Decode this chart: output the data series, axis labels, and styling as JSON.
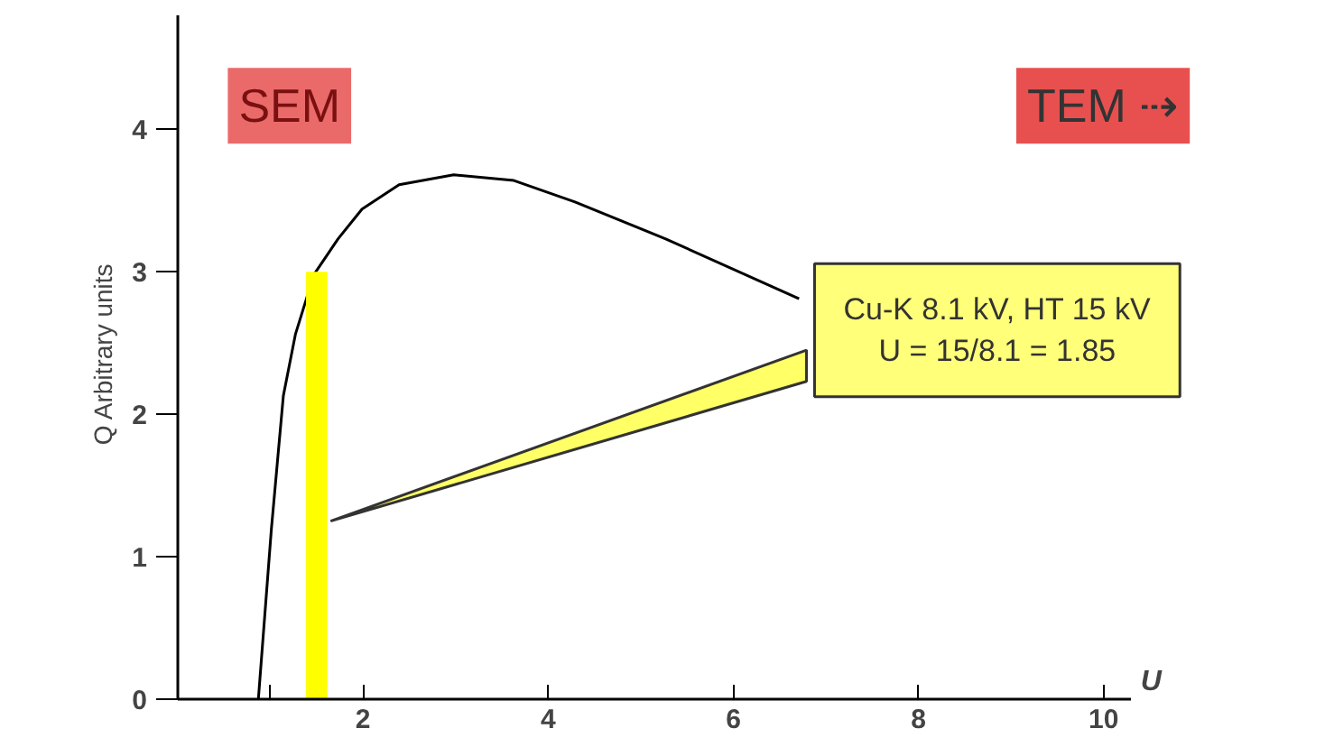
{
  "chart_data": {
    "type": "line",
    "xlabel": "U",
    "ylabel": "Q Arbitrary units",
    "xlim": [
      0,
      10.3
    ],
    "ylim": [
      0,
      4.8
    ],
    "xticks": [
      {
        "value": 1,
        "label": null
      },
      2,
      4,
      6,
      8,
      10
    ],
    "yticks": [
      0,
      1,
      2,
      3,
      4
    ],
    "grid": false,
    "marker": "none",
    "line_style": "solid",
    "series": [
      {
        "color": "#000000",
        "x": [
          0.87,
          1.01,
          1.14,
          1.27,
          1.47,
          1.73,
          1.99,
          2.39,
          2.98,
          3.63,
          4.29,
          5.27,
          6.71
        ],
        "values": [
          0,
          1.19,
          2.13,
          2.56,
          2.98,
          3.23,
          3.44,
          3.61,
          3.68,
          3.64,
          3.49,
          3.23,
          2.81
        ]
      },
      {
        "type": "bar",
        "color": "#ffff00",
        "x": [
          1.5
        ],
        "values": [
          3
        ]
      }
    ],
    "annotations": [
      "SEM",
      "TEM ⇢",
      {
        "text": "Cu-K 8.1 kV, HT 15 kV\nU = 15/8.1 = 1.85",
        "x": 1.65,
        "y": 1.25
      }
    ]
  }
}
